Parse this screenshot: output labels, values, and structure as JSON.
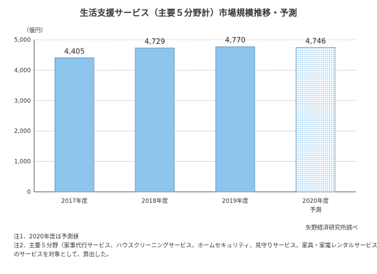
{
  "chart_data": {
    "type": "bar",
    "title": "生活支援サービス（主要５分野計）市場規模推移・予測",
    "unit": "（億円）",
    "categories": [
      "2017年度",
      "2018年度",
      "2019年度",
      "2020年度"
    ],
    "category_sublabels": [
      "",
      "",
      "",
      "予測"
    ],
    "values": [
      4405,
      4729,
      4770,
      4746
    ],
    "value_labels": [
      "4,405",
      "4,729",
      "4,770",
      "4,746"
    ],
    "forecast": [
      false,
      false,
      false,
      true
    ],
    "ylim": [
      0,
      5000
    ],
    "yticks": [
      0,
      1000,
      2000,
      3000,
      4000,
      5000
    ],
    "ytick_labels": [
      "0",
      "1,000",
      "2,000",
      "3,000",
      "4,000",
      "5,000"
    ],
    "colors": {
      "bar": "#8ec5ec",
      "bar_stroke": "#5a8fb8",
      "forecast_dot": "#8ec5ec",
      "grid": "#888888"
    },
    "grid": true,
    "legend": "none"
  },
  "source": "矢野経済研究所調べ",
  "notes": [
    "注1．2020年度は予測値",
    "注2．主要５分野（家事代行サービス、ハウスクリーニングサービス、ホームセキュリティ、見守りサービス、家具・家電レンタルサービス）",
    "のサービスを対象として、算出した。"
  ]
}
